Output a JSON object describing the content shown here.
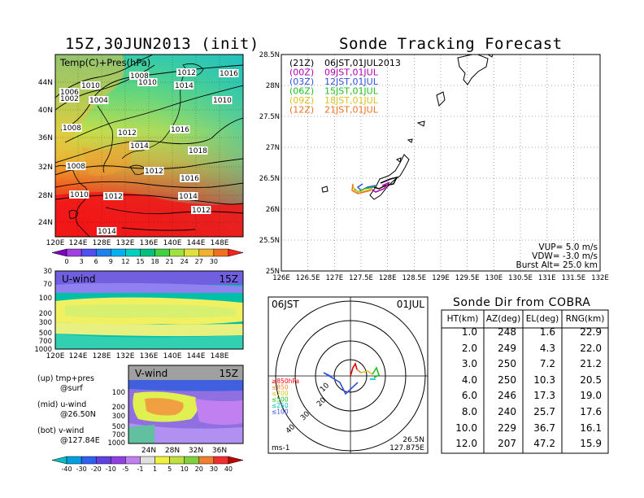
{
  "left": {
    "title": "15Z,30JUN2013 (init)",
    "map": {
      "label": "Temp(C)+Pres(hPa)",
      "lat_labels": [
        "44N",
        "40N",
        "36N",
        "32N",
        "28N",
        "24N"
      ],
      "lon_labels": [
        "120E",
        "124E",
        "128E",
        "132E",
        "136E",
        "140E",
        "144E",
        "148E"
      ],
      "isobar_labels": [
        "1016",
        "1012",
        "1008",
        "1010",
        "1006",
        "1002",
        "1004",
        "1008",
        "1010",
        "1014",
        "1012",
        "1010",
        "1016",
        "1014",
        "1018",
        "1008",
        "1012",
        "1016",
        "1014",
        "1010",
        "1012",
        "1012",
        "1014"
      ]
    },
    "temp_colorbar": {
      "ticks": [
        "0",
        "3",
        "6",
        "9",
        "12",
        "15",
        "18",
        "21",
        "24",
        "27",
        "30"
      ],
      "colors": [
        "#8000c0",
        "#a040e0",
        "#5050f0",
        "#2080f0",
        "#00b0f0",
        "#00d0c0",
        "#00c080",
        "#40d040",
        "#a0e040",
        "#e0e040",
        "#f0b030",
        "#f07020",
        "#ff2020"
      ]
    },
    "uwind": {
      "label": "U-wind",
      "time": "15Z",
      "pressure_ticks": [
        "30",
        "70",
        "100",
        "200",
        "300",
        "500",
        "700",
        "1000"
      ],
      "lon_labels": [
        "120E",
        "124E",
        "128E",
        "132E",
        "136E",
        "140E",
        "144E",
        "148E"
      ]
    },
    "vwind": {
      "label": "V-wind",
      "time": "15Z",
      "pressure_ticks": [
        "100",
        "200",
        "300",
        "500",
        "700",
        "1000"
      ],
      "lat_labels": [
        "24N",
        "28N",
        "32N",
        "36N"
      ]
    },
    "notes": [
      {
        "title": "(up) tmp+pres",
        "sub": "@surf"
      },
      {
        "title": "(mid) u-wind",
        "sub": "@26.50N"
      },
      {
        "title": "(bot) v-wind",
        "sub": "@127.84E"
      }
    ],
    "wind_colorbar": {
      "ticks": [
        "-40",
        "-30",
        "-20",
        "-10",
        "-5",
        "-1",
        "1",
        "5",
        "10",
        "20",
        "30",
        "40"
      ],
      "colors": [
        "#00c0c0",
        "#00a0e0",
        "#3060f0",
        "#6040e0",
        "#9040e0",
        "#c080f0",
        "#e0e0e0",
        "#f0f040",
        "#c0e040",
        "#80d040",
        "#f08030",
        "#f03030",
        "#c00000"
      ]
    }
  },
  "tracking": {
    "title": "Sonde Tracking Forecast",
    "legend": [
      {
        "code": "(21Z)",
        "text": "06JST,01JUL2013",
        "color": "#000000"
      },
      {
        "code": "(00Z)",
        "text": "09JST,01JUL",
        "color": "#b000b0"
      },
      {
        "code": "(03Z)",
        "text": "12JST,01JUL",
        "color": "#3050e0"
      },
      {
        "code": "(06Z)",
        "text": "15JST,01JUL",
        "color": "#20c020"
      },
      {
        "code": "(09Z)",
        "text": "18JST,01JUL",
        "color": "#e0c020"
      },
      {
        "code": "(12Z)",
        "text": "21JST,01JUL",
        "color": "#f07020"
      }
    ],
    "lat_labels": [
      "28.5N",
      "28N",
      "27.5N",
      "27N",
      "26.5N",
      "26N",
      "25.5N",
      "25N"
    ],
    "lon_labels": [
      "126E",
      "126.5E",
      "127E",
      "127.5E",
      "128E",
      "128.5E",
      "129E",
      "129.5E",
      "130E",
      "130.5E",
      "131E",
      "131.5E",
      "132E"
    ],
    "params": [
      "VUP= 5.0 m/s",
      "VDW= -3.0 m/s",
      "Burst Alt= 25.0 km"
    ]
  },
  "polar": {
    "time": "06JST",
    "date": "01JUL",
    "unit": "ms-1",
    "lat": "26.5N",
    "lon": "127.875E",
    "ring_labels": [
      "10",
      "20",
      "30",
      "40"
    ],
    "pressure_legend": [
      {
        "text": "≥850hPa",
        "color": "#ff0000"
      },
      {
        "text": "≤850",
        "color": "#f08030"
      },
      {
        "text": "≤700",
        "color": "#e0c020"
      },
      {
        "text": "≤500",
        "color": "#20c020"
      },
      {
        "text": "≤250",
        "color": "#00c0c0"
      },
      {
        "text": "≤100",
        "color": "#3050e0"
      }
    ]
  },
  "table": {
    "title": "Sonde Dir from COBRA",
    "headers": [
      "HT(km)",
      "AZ(deg)",
      "EL(deg)",
      "RNG(km)"
    ],
    "rows": [
      [
        "1.0",
        "248",
        "1.6",
        "22.9"
      ],
      [
        "2.0",
        "249",
        "4.3",
        "22.0"
      ],
      [
        "3.0",
        "250",
        "7.2",
        "21.2"
      ],
      [
        "4.0",
        "250",
        "10.3",
        "20.5"
      ],
      [
        "6.0",
        "246",
        "17.3",
        "19.0"
      ],
      [
        "8.0",
        "240",
        "25.7",
        "17.6"
      ],
      [
        "10.0",
        "229",
        "36.7",
        "16.1"
      ],
      [
        "12.0",
        "207",
        "47.2",
        "15.9"
      ]
    ]
  }
}
